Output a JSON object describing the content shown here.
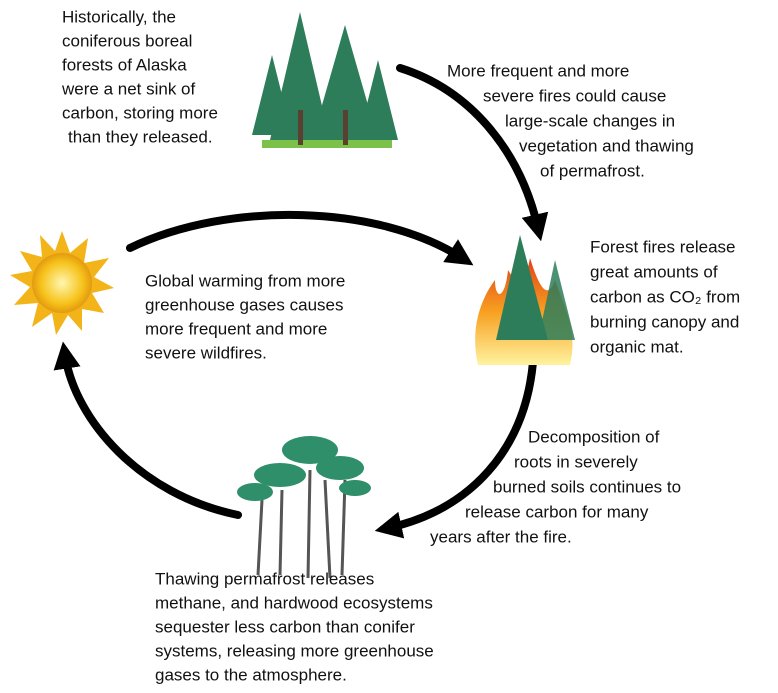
{
  "nodes": [
    {
      "lines": [
        "Historically, the",
        "coniferous boreal",
        "forests of Alaska",
        "were a net sink of",
        "carbon, storing more",
        "than they released."
      ]
    },
    {
      "lines": [
        "More frequent and more",
        "severe fires could cause",
        "large-scale changes in",
        "vegetation and thawing",
        "of permafrost."
      ]
    },
    {
      "lines": [
        "Forest fires release",
        "great amounts of",
        "carbon as CO₂ from",
        "burning canopy and",
        "organic mat."
      ]
    },
    {
      "lines": [
        "Global warming from more",
        "greenhouse gases causes",
        "more frequent and more",
        "severe wildfires."
      ]
    },
    {
      "lines": [
        "Decomposition of",
        "roots in severely",
        "burned soils continues to",
        "release carbon for many",
        "years after the fire."
      ]
    },
    {
      "lines": [
        "Thawing permafrost releases",
        "methane, and hardwood ecosystems",
        "sequester less carbon than conifer",
        "systems, releasing more greenhouse",
        "gases to the atmosphere."
      ]
    }
  ]
}
